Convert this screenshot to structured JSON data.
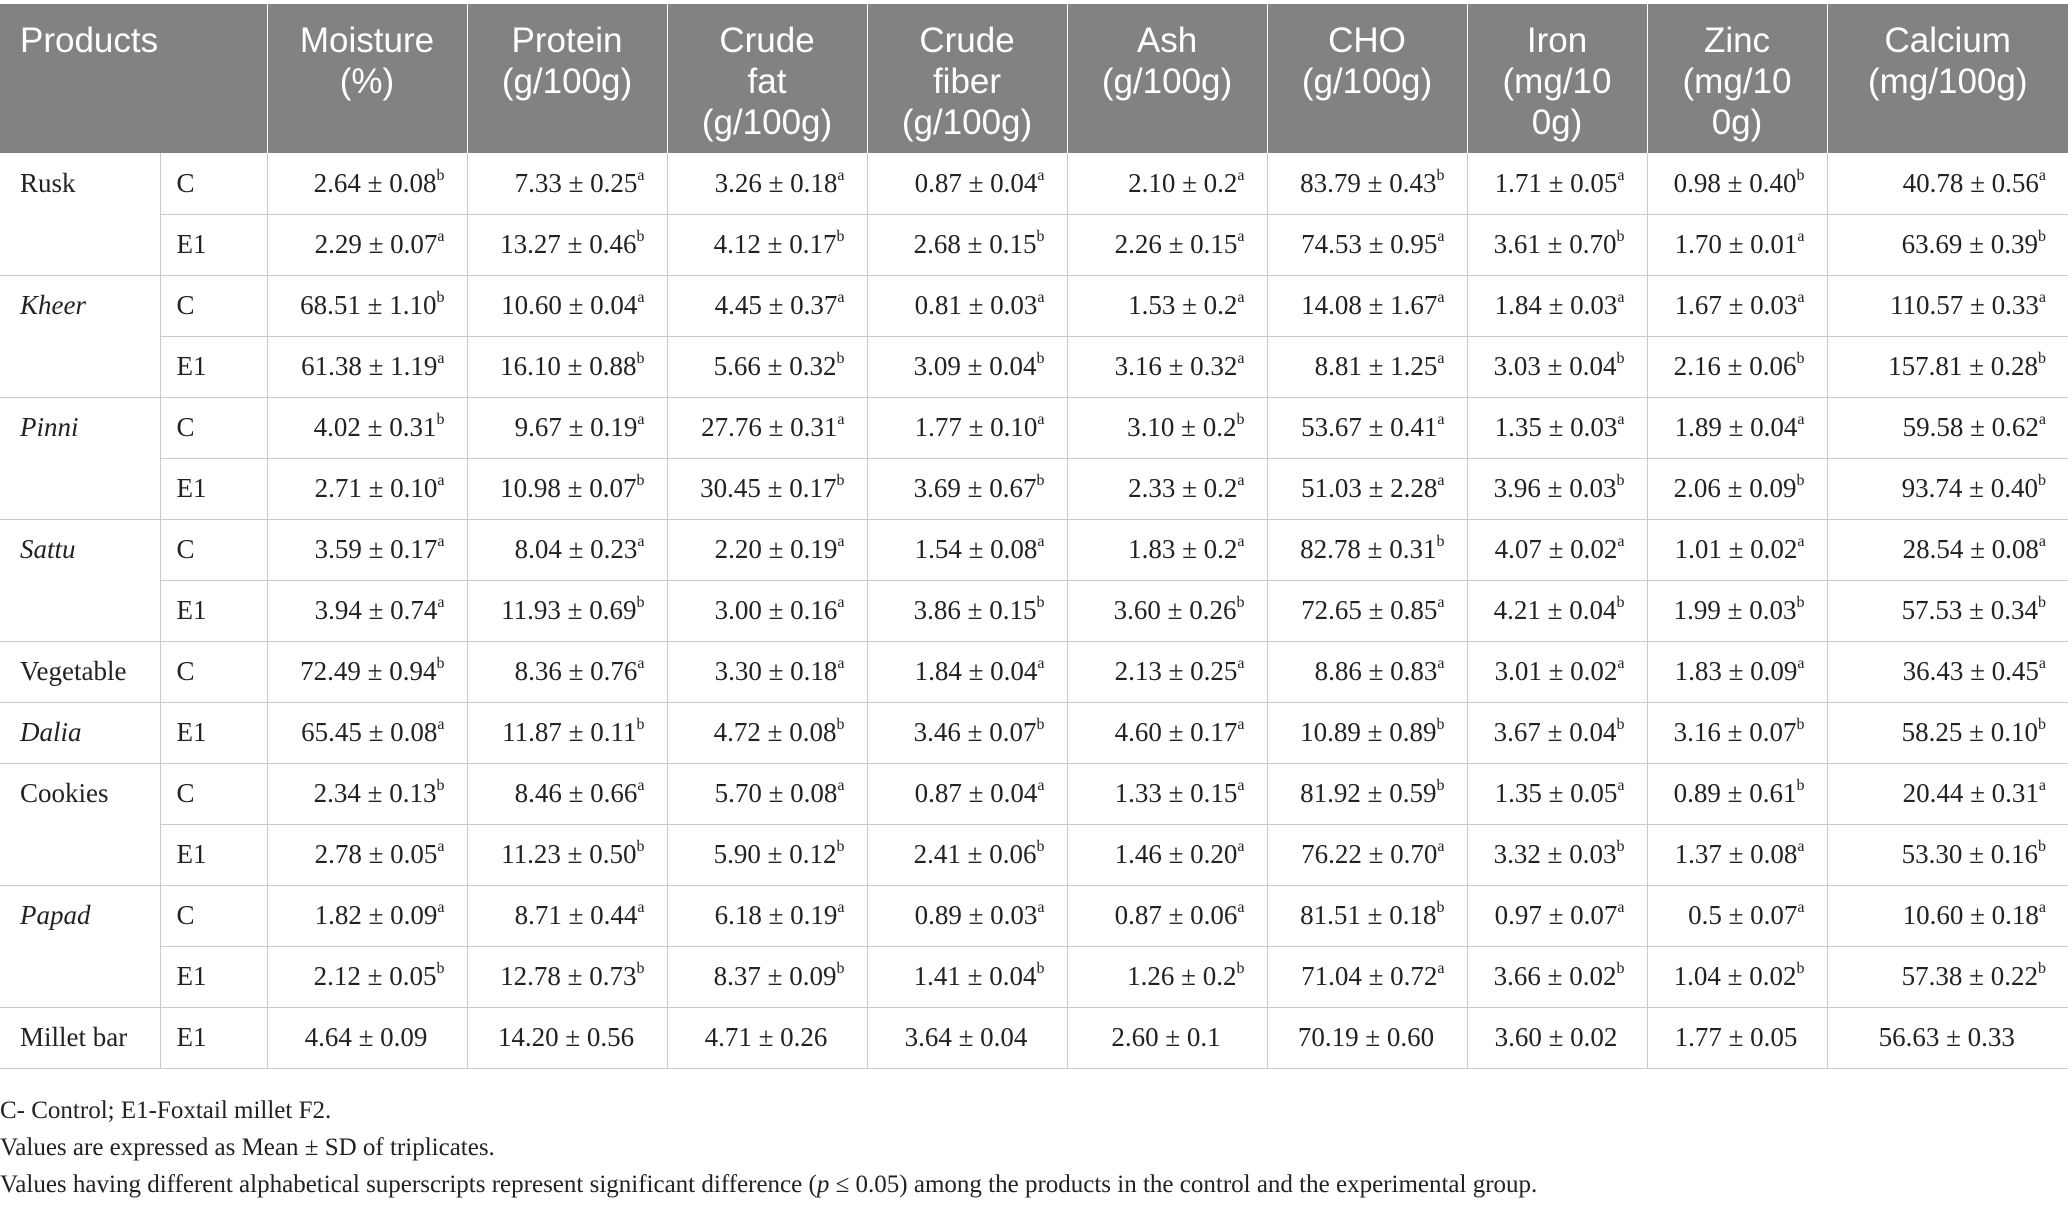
{
  "table": {
    "headers": [
      [
        "Products"
      ],
      [
        "Moisture",
        "(%)"
      ],
      [
        "Protein",
        "(g/100g)"
      ],
      [
        "Crude",
        "fat",
        "(g/100g)"
      ],
      [
        "Crude",
        "fiber",
        "(g/100g)"
      ],
      [
        "Ash",
        "(g/100g)"
      ],
      [
        "CHO",
        "(g/100g)"
      ],
      [
        "Iron",
        "(mg/10",
        "0g)"
      ],
      [
        "Zinc",
        "(mg/10",
        "0g)"
      ],
      [
        "Calcium",
        "(mg/100g)"
      ]
    ],
    "rows": [
      {
        "product": "Rusk",
        "italic": false,
        "group": "C",
        "cells": [
          {
            "v": "2.64 ± 0.08",
            "s": "b"
          },
          {
            "v": "7.33 ± 0.25",
            "s": "a"
          },
          {
            "v": "3.26 ± 0.18",
            "s": "a"
          },
          {
            "v": "0.87 ± 0.04",
            "s": "a"
          },
          {
            "v": "2.10 ± 0.2",
            "s": "a"
          },
          {
            "v": "83.79 ± 0.43",
            "s": "b"
          },
          {
            "v": "1.71 ± 0.05",
            "s": "a"
          },
          {
            "v": "0.98 ± 0.40",
            "s": "b"
          },
          {
            "v": "40.78 ± 0.56",
            "s": "a"
          }
        ]
      },
      {
        "product": "",
        "italic": false,
        "group": "E1",
        "cells": [
          {
            "v": "2.29 ± 0.07",
            "s": "a"
          },
          {
            "v": "13.27 ± 0.46",
            "s": "b"
          },
          {
            "v": "4.12 ± 0.17",
            "s": "b"
          },
          {
            "v": "2.68 ± 0.15",
            "s": "b"
          },
          {
            "v": "2.26 ± 0.15",
            "s": "a"
          },
          {
            "v": "74.53 ± 0.95",
            "s": "a"
          },
          {
            "v": "3.61 ± 0.70",
            "s": "b"
          },
          {
            "v": "1.70 ± 0.01",
            "s": "a"
          },
          {
            "v": "63.69 ± 0.39",
            "s": "b"
          }
        ]
      },
      {
        "product": "Kheer",
        "italic": true,
        "group": "C",
        "cells": [
          {
            "v": "68.51 ± 1.10",
            "s": "b"
          },
          {
            "v": "10.60 ± 0.04",
            "s": "a"
          },
          {
            "v": "4.45 ± 0.37",
            "s": "a"
          },
          {
            "v": "0.81 ± 0.03",
            "s": "a"
          },
          {
            "v": "1.53 ± 0.2",
            "s": "a"
          },
          {
            "v": "14.08 ± 1.67",
            "s": "a"
          },
          {
            "v": "1.84 ± 0.03",
            "s": "a"
          },
          {
            "v": "1.67 ± 0.03",
            "s": "a"
          },
          {
            "v": "110.57 ± 0.33",
            "s": "a"
          }
        ]
      },
      {
        "product": "",
        "italic": false,
        "group": "E1",
        "cells": [
          {
            "v": "61.38 ± 1.19",
            "s": "a"
          },
          {
            "v": "16.10 ± 0.88",
            "s": "b"
          },
          {
            "v": "5.66 ± 0.32",
            "s": "b"
          },
          {
            "v": "3.09 ± 0.04",
            "s": "b"
          },
          {
            "v": "3.16 ± 0.32",
            "s": "a"
          },
          {
            "v": "8.81 ± 1.25",
            "s": "a"
          },
          {
            "v": "3.03 ± 0.04",
            "s": "b"
          },
          {
            "v": "2.16 ± 0.06",
            "s": "b"
          },
          {
            "v": "157.81 ± 0.28",
            "s": "b"
          }
        ]
      },
      {
        "product": "Pinni",
        "italic": true,
        "group": "C",
        "cells": [
          {
            "v": "4.02 ± 0.31",
            "s": "b"
          },
          {
            "v": "9.67 ± 0.19",
            "s": "a"
          },
          {
            "v": "27.76 ± 0.31",
            "s": "a"
          },
          {
            "v": "1.77 ± 0.10",
            "s": "a"
          },
          {
            "v": "3.10 ± 0.2",
            "s": "b"
          },
          {
            "v": "53.67 ± 0.41",
            "s": "a"
          },
          {
            "v": "1.35 ± 0.03",
            "s": "a"
          },
          {
            "v": "1.89 ± 0.04",
            "s": "a"
          },
          {
            "v": "59.58 ± 0.62",
            "s": "a"
          }
        ]
      },
      {
        "product": "",
        "italic": false,
        "group": "E1",
        "cells": [
          {
            "v": "2.71 ± 0.10",
            "s": "a"
          },
          {
            "v": "10.98 ± 0.07",
            "s": "b"
          },
          {
            "v": "30.45 ± 0.17",
            "s": "b"
          },
          {
            "v": "3.69 ± 0.67",
            "s": "b"
          },
          {
            "v": "2.33 ± 0.2",
            "s": "a"
          },
          {
            "v": "51.03 ± 2.28",
            "s": "a"
          },
          {
            "v": "3.96 ± 0.03",
            "s": "b"
          },
          {
            "v": "2.06 ± 0.09",
            "s": "b"
          },
          {
            "v": "93.74 ± 0.40",
            "s": "b"
          }
        ]
      },
      {
        "product": "Sattu",
        "italic": true,
        "group": "C",
        "cells": [
          {
            "v": "3.59 ± 0.17",
            "s": "a"
          },
          {
            "v": "8.04 ± 0.23",
            "s": "a"
          },
          {
            "v": "2.20 ± 0.19",
            "s": "a"
          },
          {
            "v": "1.54 ± 0.08",
            "s": "a"
          },
          {
            "v": "1.83 ± 0.2",
            "s": "a"
          },
          {
            "v": "82.78 ± 0.31",
            "s": "b"
          },
          {
            "v": "4.07 ± 0.02",
            "s": "a"
          },
          {
            "v": "1.01 ± 0.02",
            "s": "a"
          },
          {
            "v": "28.54 ± 0.08",
            "s": "a"
          }
        ]
      },
      {
        "product": "",
        "italic": false,
        "group": "E1",
        "cells": [
          {
            "v": "3.94 ± 0.74",
            "s": "a"
          },
          {
            "v": "11.93 ± 0.69",
            "s": "b"
          },
          {
            "v": "3.00 ± 0.16",
            "s": "a"
          },
          {
            "v": "3.86 ± 0.15",
            "s": "b"
          },
          {
            "v": "3.60 ± 0.26",
            "s": "b"
          },
          {
            "v": "72.65 ± 0.85",
            "s": "a"
          },
          {
            "v": "4.21 ± 0.04",
            "s": "b"
          },
          {
            "v": "1.99 ± 0.03",
            "s": "b"
          },
          {
            "v": "57.53 ± 0.34",
            "s": "b"
          }
        ]
      },
      {
        "product": "Vegetable",
        "italic": false,
        "group": "C",
        "cells": [
          {
            "v": "72.49 ± 0.94",
            "s": "b"
          },
          {
            "v": "8.36 ± 0.76",
            "s": "a"
          },
          {
            "v": "3.30 ± 0.18",
            "s": "a"
          },
          {
            "v": "1.84 ± 0.04",
            "s": "a"
          },
          {
            "v": "2.13 ± 0.25",
            "s": "a"
          },
          {
            "v": "8.86 ± 0.83",
            "s": "a"
          },
          {
            "v": "3.01 ± 0.02",
            "s": "a"
          },
          {
            "v": "1.83 ± 0.09",
            "s": "a"
          },
          {
            "v": "36.43 ± 0.45",
            "s": "a"
          }
        ]
      },
      {
        "product": "Dalia",
        "italic": true,
        "group": "E1",
        "cells": [
          {
            "v": "65.45 ± 0.08",
            "s": "a"
          },
          {
            "v": "11.87 ± 0.11",
            "s": "b"
          },
          {
            "v": "4.72 ± 0.08",
            "s": "b"
          },
          {
            "v": "3.46 ± 0.07",
            "s": "b"
          },
          {
            "v": "4.60 ± 0.17",
            "s": "a"
          },
          {
            "v": "10.89 ± 0.89",
            "s": "b"
          },
          {
            "v": "3.67 ± 0.04",
            "s": "b"
          },
          {
            "v": "3.16 ± 0.07",
            "s": "b"
          },
          {
            "v": "58.25 ± 0.10",
            "s": "b"
          }
        ]
      },
      {
        "product": "Cookies",
        "italic": false,
        "group": "C",
        "cells": [
          {
            "v": "2.34 ± 0.13",
            "s": "b"
          },
          {
            "v": "8.46 ± 0.66",
            "s": "a"
          },
          {
            "v": "5.70 ± 0.08",
            "s": "a"
          },
          {
            "v": "0.87 ± 0.04",
            "s": "a"
          },
          {
            "v": "1.33 ± 0.15",
            "s": "a"
          },
          {
            "v": "81.92 ± 0.59",
            "s": "b"
          },
          {
            "v": "1.35 ± 0.05",
            "s": "a"
          },
          {
            "v": "0.89 ± 0.61",
            "s": "b"
          },
          {
            "v": "20.44 ± 0.31",
            "s": "a"
          }
        ]
      },
      {
        "product": "",
        "italic": false,
        "group": "E1",
        "cells": [
          {
            "v": "2.78 ± 0.05",
            "s": "a"
          },
          {
            "v": "11.23 ± 0.50",
            "s": "b"
          },
          {
            "v": "5.90 ± 0.12",
            "s": "b"
          },
          {
            "v": "2.41 ± 0.06",
            "s": "b"
          },
          {
            "v": "1.46 ± 0.20",
            "s": "a"
          },
          {
            "v": "76.22 ± 0.70",
            "s": "a"
          },
          {
            "v": "3.32 ± 0.03",
            "s": "b"
          },
          {
            "v": "1.37 ± 0.08",
            "s": "a"
          },
          {
            "v": "53.30 ± 0.16",
            "s": "b"
          }
        ]
      },
      {
        "product": "Papad",
        "italic": true,
        "group": "C",
        "cells": [
          {
            "v": "1.82 ± 0.09",
            "s": "a"
          },
          {
            "v": "8.71 ± 0.44",
            "s": "a"
          },
          {
            "v": "6.18 ± 0.19",
            "s": "a"
          },
          {
            "v": "0.89 ± 0.03",
            "s": "a"
          },
          {
            "v": "0.87 ± 0.06",
            "s": "a"
          },
          {
            "v": "81.51 ± 0.18",
            "s": "b"
          },
          {
            "v": "0.97 ± 0.07",
            "s": "a"
          },
          {
            "v": "0.5 ± 0.07",
            "s": "a"
          },
          {
            "v": "10.60 ± 0.18",
            "s": "a"
          }
        ]
      },
      {
        "product": "",
        "italic": false,
        "group": "E1",
        "cells": [
          {
            "v": "2.12 ± 0.05",
            "s": "b"
          },
          {
            "v": "12.78 ± 0.73",
            "s": "b"
          },
          {
            "v": "8.37 ± 0.09",
            "s": "b"
          },
          {
            "v": "1.41 ± 0.04",
            "s": "b"
          },
          {
            "v": "1.26 ± 0.2",
            "s": "b"
          },
          {
            "v": "71.04 ± 0.72",
            "s": "a"
          },
          {
            "v": "3.66 ± 0.02",
            "s": "b"
          },
          {
            "v": "1.04 ± 0.02",
            "s": "b"
          },
          {
            "v": "57.38 ± 0.22",
            "s": "b"
          }
        ]
      },
      {
        "product": "Millet bar",
        "italic": false,
        "group": "E1",
        "center": true,
        "cells": [
          {
            "v": "4.64 ± 0.09",
            "s": ""
          },
          {
            "v": "14.20 ± 0.56",
            "s": ""
          },
          {
            "v": "4.71 ± 0.26",
            "s": ""
          },
          {
            "v": "3.64 ± 0.04",
            "s": ""
          },
          {
            "v": "2.60 ± 0.1",
            "s": ""
          },
          {
            "v": "70.19 ± 0.60",
            "s": ""
          },
          {
            "v": "3.60 ± 0.02",
            "s": ""
          },
          {
            "v": "1.77 ± 0.05",
            "s": ""
          },
          {
            "v": "56.63 ± 0.33",
            "s": ""
          }
        ]
      }
    ]
  },
  "footnotes": {
    "line1": "C- Control; E1-Foxtail millet F2.",
    "line2": "Values are expressed as Mean ± SD of triplicates.",
    "line3_before": "Values having different alphabetical superscripts represent significant difference (",
    "line3_italic": "p",
    "line3_after": " ≤ 0.05) among the products in the control and the experimental group."
  },
  "colors": {
    "header_bg": "#808284",
    "header_text": "#ffffff",
    "rule": "#c9c9c9"
  }
}
